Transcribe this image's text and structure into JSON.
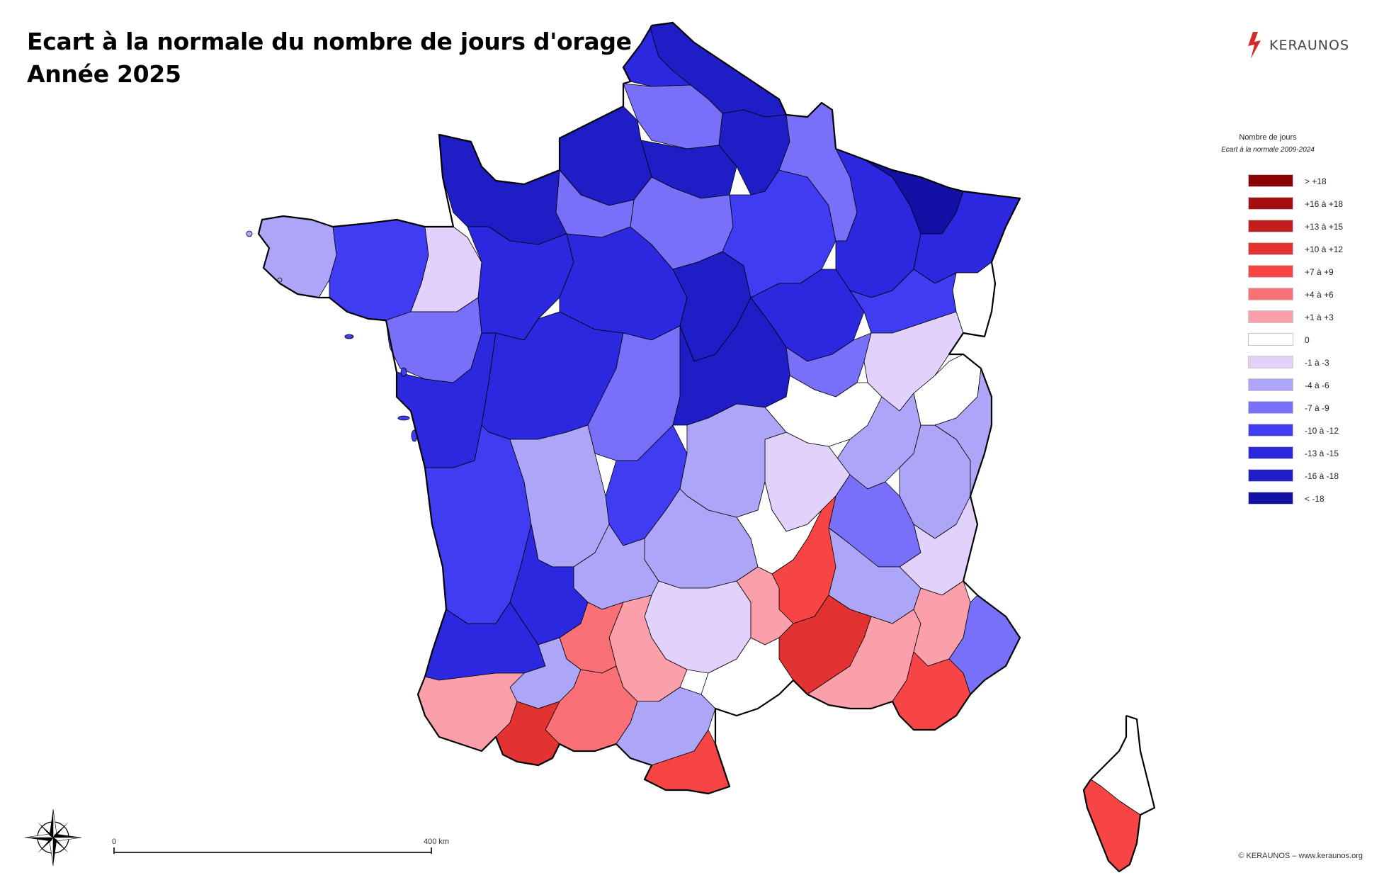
{
  "title": {
    "line1": "Ecart à la normale du nombre de jours d'orage",
    "line2": "Année 2025"
  },
  "logo": {
    "brand": "KERAUNOS",
    "icon": "lightning-bolt-icon",
    "color": "#d62b2b"
  },
  "legend": {
    "title": "Nombre de jours",
    "subtitle": "Ecart à la normale 2009-2024",
    "items": [
      {
        "label": "> +18",
        "color": "#8b0000"
      },
      {
        "label": "+16 à +18",
        "color": "#a50f0f"
      },
      {
        "label": "+13 à +15",
        "color": "#c21e1e"
      },
      {
        "label": "+10 à +12",
        "color": "#e23232"
      },
      {
        "label": "+7 à +9",
        "color": "#f74545"
      },
      {
        "label": "+4 à +6",
        "color": "#fa7077"
      },
      {
        "label": "+1 à +3",
        "color": "#fba0aa"
      },
      {
        "label": "0",
        "color": "#ffffff"
      },
      {
        "label": "-1 à -3",
        "color": "#e2d2fb"
      },
      {
        "label": "-4 à -6",
        "color": "#ada6f8"
      },
      {
        "label": "-7 à -9",
        "color": "#7870f8"
      },
      {
        "label": "-10 à -12",
        "color": "#3f3cf2"
      },
      {
        "label": "-13 à -15",
        "color": "#2c28e0"
      },
      {
        "label": "-16 à -18",
        "color": "#1e1dc6"
      },
      {
        "label": "< -18",
        "color": "#1310a6"
      }
    ]
  },
  "scale": {
    "start": "0",
    "end": "400 km"
  },
  "copyright": "© KERAUNOS – www.keraunos.org",
  "compass_icon": "compass-rose-icon",
  "regions": [
    {
      "name": "nord",
      "color": "#1e1dc6"
    },
    {
      "name": "pas-de-calais",
      "color": "#2c28e0"
    },
    {
      "name": "somme",
      "color": "#7870f8"
    },
    {
      "name": "aisne",
      "color": "#1e1dc6"
    },
    {
      "name": "oise",
      "color": "#1e1dc6"
    },
    {
      "name": "normandie-est",
      "color": "#1e1dc6"
    },
    {
      "name": "normandie-centre",
      "color": "#7870f8"
    },
    {
      "name": "manche",
      "color": "#1e1dc6"
    },
    {
      "name": "bretagne-ouest",
      "color": "#ada6f8"
    },
    {
      "name": "bretagne-centre",
      "color": "#3f3cf2"
    },
    {
      "name": "ille-et-vilaine",
      "color": "#e2d2fb"
    },
    {
      "name": "loire-atlantique",
      "color": "#7870f8"
    },
    {
      "name": "pays-de-la-loire",
      "color": "#2c28e0"
    },
    {
      "name": "centre",
      "color": "#2c28e0"
    },
    {
      "name": "ile-de-france",
      "color": "#7870f8"
    },
    {
      "name": "loiret-yonne",
      "color": "#1e1dc6"
    },
    {
      "name": "champagne",
      "color": "#3f3cf2"
    },
    {
      "name": "ardennes-meuse",
      "color": "#7870f8"
    },
    {
      "name": "lorraine",
      "color": "#2c28e0"
    },
    {
      "name": "moselle",
      "color": "#1310a6"
    },
    {
      "name": "alsace",
      "color": "#2c28e0"
    },
    {
      "name": "haut-rhin",
      "color": "#ffffff"
    },
    {
      "name": "cote-dor",
      "color": "#2c28e0"
    },
    {
      "name": "franche-comte-nord",
      "color": "#3f3cf2"
    },
    {
      "name": "haute-saone",
      "color": "#7870f8"
    },
    {
      "name": "doubs",
      "color": "#e2d2fb"
    },
    {
      "name": "saone-et-loire",
      "color": "#ffffff"
    },
    {
      "name": "jura",
      "color": "#ada6f8"
    },
    {
      "name": "ain",
      "color": "#ada6f8"
    },
    {
      "name": "haute-savoie",
      "color": "#ffffff"
    },
    {
      "name": "savoie",
      "color": "#ada6f8"
    },
    {
      "name": "rhone-loire",
      "color": "#e2d2fb"
    },
    {
      "name": "isere",
      "color": "#7870f8"
    },
    {
      "name": "hautes-alpes",
      "color": "#e2d2fb"
    },
    {
      "name": "vendee-charente",
      "color": "#2c28e0"
    },
    {
      "name": "vienne-indre",
      "color": "#2c28e0"
    },
    {
      "name": "limousin",
      "color": "#7870f8"
    },
    {
      "name": "creuse",
      "color": "#3f3cf2"
    },
    {
      "name": "allier-cher",
      "color": "#1e1dc6"
    },
    {
      "name": "puy-de-dome",
      "color": "#ada6f8"
    },
    {
      "name": "cantal",
      "color": "#ada6f8"
    },
    {
      "name": "haute-loire",
      "color": "#ffffff"
    },
    {
      "name": "ardeche",
      "color": "#f74545"
    },
    {
      "name": "drome",
      "color": "#ada6f8"
    },
    {
      "name": "gironde",
      "color": "#3f3cf2"
    },
    {
      "name": "dordogne",
      "color": "#ada6f8"
    },
    {
      "name": "lot",
      "color": "#ada6f8"
    },
    {
      "name": "landes",
      "color": "#2c28e0"
    },
    {
      "name": "lot-et-garonne",
      "color": "#2c28e0"
    },
    {
      "name": "aveyron",
      "color": "#e2d2fb"
    },
    {
      "name": "lozere",
      "color": "#fba0aa"
    },
    {
      "name": "gard",
      "color": "#e23232"
    },
    {
      "name": "herault",
      "color": "#ffffff"
    },
    {
      "name": "tarn",
      "color": "#fba0aa"
    },
    {
      "name": "tarn-et-garonne",
      "color": "#fa7077"
    },
    {
      "name": "gers",
      "color": "#ada6f8"
    },
    {
      "name": "haute-garonne",
      "color": "#fa7077"
    },
    {
      "name": "pyrenees-atlantiques",
      "color": "#fba0aa"
    },
    {
      "name": "hautes-pyrenees",
      "color": "#e23232"
    },
    {
      "name": "ariege-aude",
      "color": "#ada6f8"
    },
    {
      "name": "pyrenees-orientales",
      "color": "#f74545"
    },
    {
      "name": "vaucluse-bdr",
      "color": "#fba0aa"
    },
    {
      "name": "alpes-haute-provence",
      "color": "#fba0aa"
    },
    {
      "name": "var",
      "color": "#f74545"
    },
    {
      "name": "alpes-maritimes",
      "color": "#7870f8"
    },
    {
      "name": "haute-corse",
      "color": "#ffffff"
    },
    {
      "name": "corse-du-sud",
      "color": "#f74545"
    }
  ]
}
